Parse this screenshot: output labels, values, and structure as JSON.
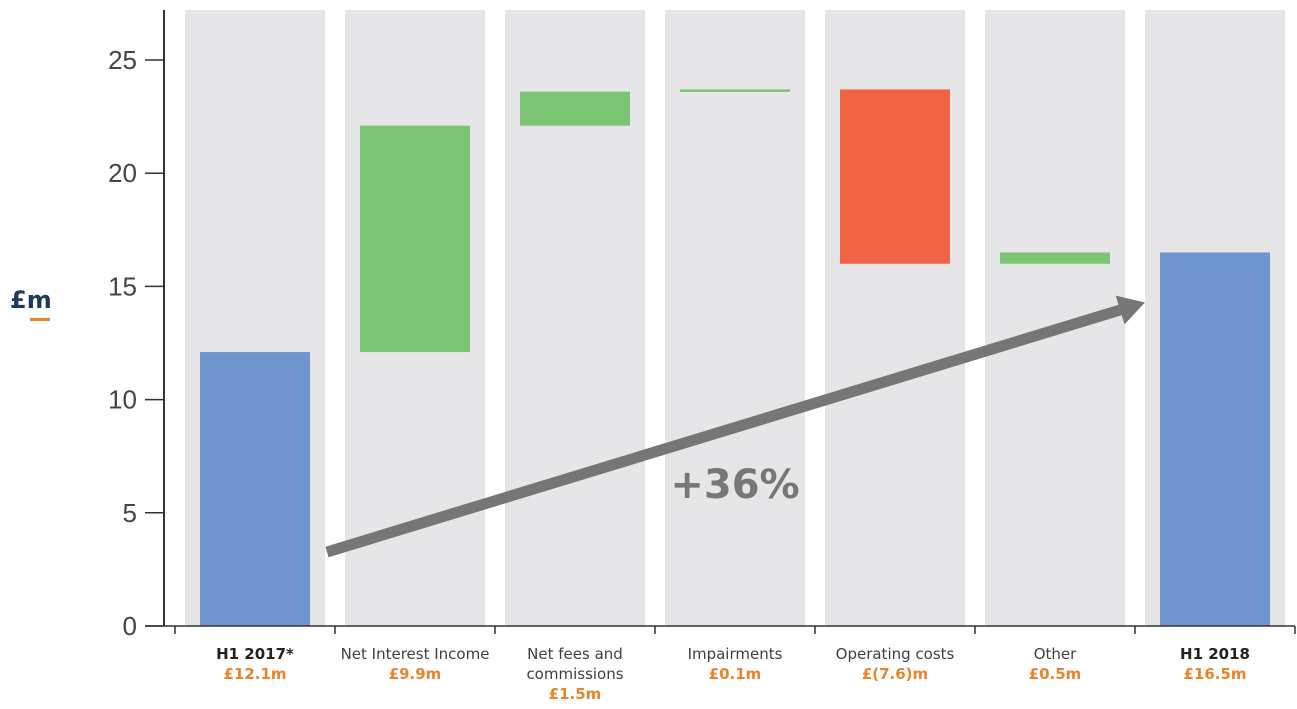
{
  "chart_data": {
    "type": "waterfall",
    "y_unit": "£m",
    "ylim": [
      0,
      27
    ],
    "y_ticks": [
      0,
      5,
      10,
      15,
      20,
      25
    ],
    "annotation": "+36%",
    "colors": {
      "total": "#6f96cf",
      "increase": "#7bc474",
      "decrease": "#f06445",
      "column_bg": "#e6e6e8",
      "arrow": "#767676",
      "value_text": "#e8842a"
    },
    "bars": [
      {
        "label": "H1 2017*",
        "value_label": "£12.1m",
        "kind": "total",
        "start": 0,
        "end": 12.1,
        "bold": true
      },
      {
        "label": "Net Interest Income",
        "value_label": "£9.9m",
        "kind": "increase",
        "start": 12.1,
        "end": 22.1,
        "bold": false
      },
      {
        "label": "Net fees and commissions",
        "value_label": "£1.5m",
        "kind": "increase",
        "start": 22.1,
        "end": 23.6,
        "bold": false
      },
      {
        "label": "Impairments",
        "value_label": "£0.1m",
        "kind": "increase",
        "start": 23.6,
        "end": 23.7,
        "bold": false
      },
      {
        "label": "Operating costs",
        "value_label": "£(7.6)m",
        "kind": "decrease",
        "start": 23.7,
        "end": 16.0,
        "bold": false
      },
      {
        "label": "Other",
        "value_label": "£0.5m",
        "kind": "increase",
        "start": 16.0,
        "end": 16.5,
        "bold": false
      },
      {
        "label": "H1 2018",
        "value_label": "£16.5m",
        "kind": "total",
        "start": 0,
        "end": 16.5,
        "bold": true
      }
    ]
  }
}
